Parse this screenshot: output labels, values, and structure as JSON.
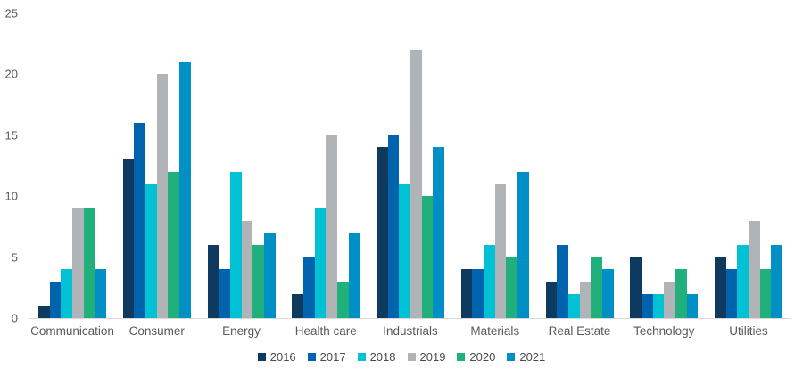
{
  "chart_data": {
    "type": "bar",
    "title": "",
    "xlabel": "",
    "ylabel": "",
    "categories": [
      "Communication",
      "Consumer",
      "Energy",
      "Health care",
      "Industrials",
      "Materials",
      "Real Estate",
      "Technology",
      "Utilities"
    ],
    "series": [
      {
        "name": "2016",
        "color": "#0d3a5e",
        "values": [
          1,
          13,
          6,
          2,
          14,
          4,
          3,
          5,
          5
        ]
      },
      {
        "name": "2017",
        "color": "#0063ae",
        "values": [
          3,
          16,
          4,
          5,
          15,
          4,
          6,
          2,
          4
        ]
      },
      {
        "name": "2018",
        "color": "#00c2d4",
        "values": [
          4,
          11,
          12,
          9,
          11,
          6,
          2,
          2,
          6
        ]
      },
      {
        "name": "2019",
        "color": "#b1b4b6",
        "values": [
          9,
          20,
          8,
          15,
          22,
          11,
          3,
          3,
          8
        ]
      },
      {
        "name": "2020",
        "color": "#21b07c",
        "values": [
          9,
          12,
          6,
          3,
          10,
          5,
          5,
          4,
          4
        ]
      },
      {
        "name": "2021",
        "color": "#0090c6",
        "values": [
          4,
          21,
          7,
          7,
          14,
          12,
          4,
          2,
          6
        ]
      }
    ],
    "ylim": [
      0,
      25
    ],
    "yticks": [
      0,
      5,
      10,
      15,
      20,
      25
    ],
    "grid": false,
    "legend_position": "bottom",
    "axis_line_color": "#d9d9d9",
    "tick_label_color": "#595959",
    "category_label_color": "#595959",
    "legend_text_color": "#4a4a4a",
    "background": "#ffffff"
  }
}
